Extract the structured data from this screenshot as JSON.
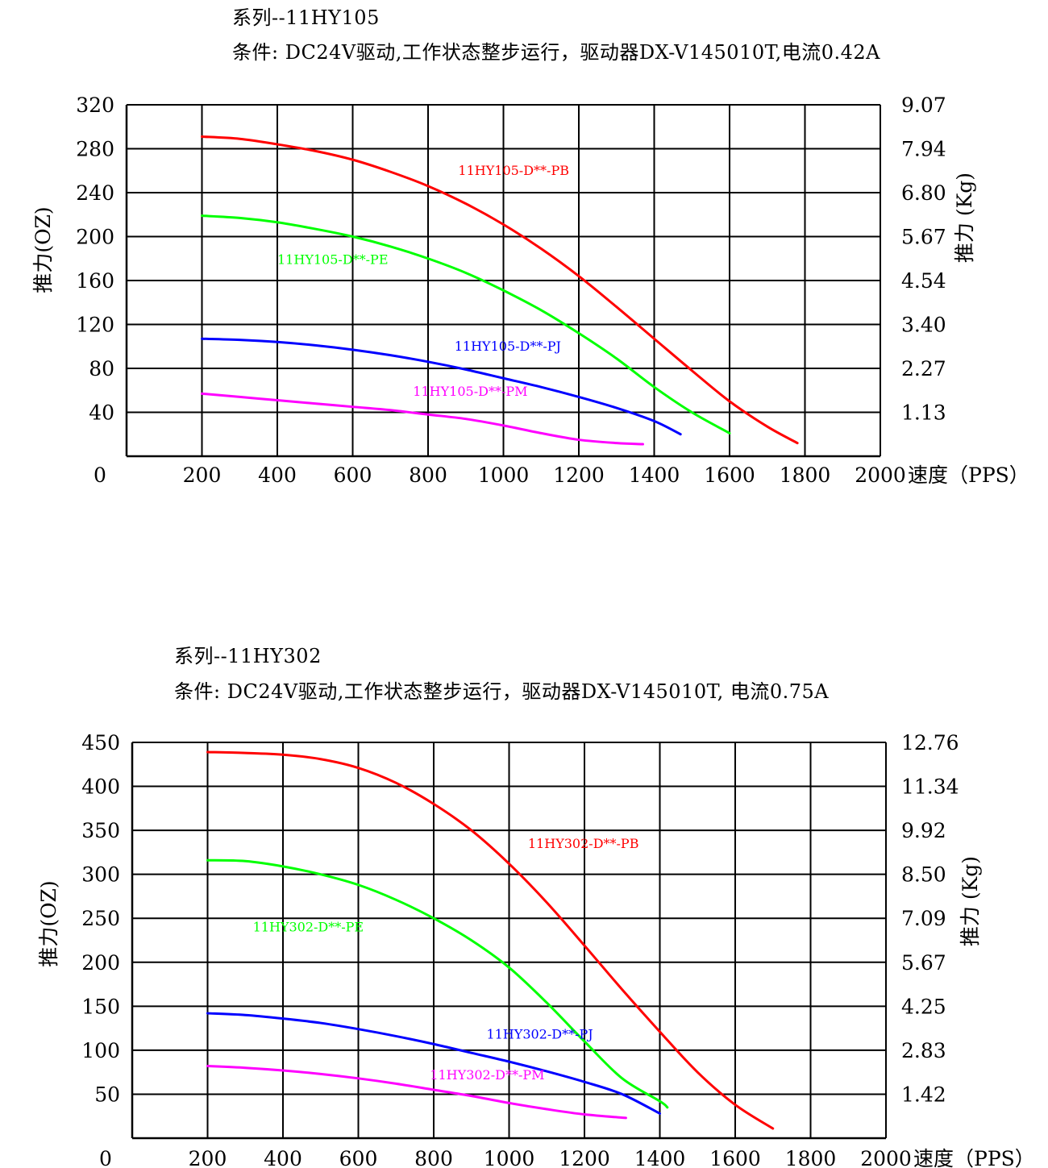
{
  "charts_page": {
    "chart1": {
      "series_line": "系列--11HY105",
      "conditions": "条件: DC24V驱动,工作状态整步运行，驱动器DX-V145010T,电流0.42A"
    },
    "chart2": {
      "series_line": "系列--11HY302",
      "conditions": "条件: DC24V驱动,工作状态整步运行，驱动器DX-V145010T, 电流0.75A"
    }
  },
  "chart_data": [
    {
      "type": "line",
      "title": "系列--11HY105",
      "subtitle": "条件: DC24V驱动,工作状态整步运行，驱动器DX-V145010T,电流0.42A",
      "xlabel": "速度（PPS）",
      "ylabel": "推力(OZ)",
      "y2label": "推力 (Kg)",
      "xlim": [
        0,
        2000
      ],
      "ylim": [
        0,
        320
      ],
      "x_ticks": [
        "200",
        "400",
        "600",
        "800",
        "1000",
        "1200",
        "1400",
        "1600",
        "1800",
        "2000"
      ],
      "x_tick_values": [
        200,
        400,
        600,
        800,
        1000,
        1200,
        1400,
        1600,
        1800,
        2000
      ],
      "y_ticks": [
        "0",
        "40",
        "80",
        "120",
        "160",
        "200",
        "240",
        "280",
        "320"
      ],
      "y_tick_values": [
        0,
        40,
        80,
        120,
        160,
        200,
        240,
        280,
        320
      ],
      "y2_ticks": [
        "1.13",
        "2.27",
        "3.40",
        "4.54",
        "5.67",
        "6.80",
        "7.94",
        "9.07"
      ],
      "y2_tick_values": [
        40,
        80,
        120,
        160,
        200,
        240,
        280,
        320
      ],
      "grid": true,
      "series": [
        {
          "name": "11HY105-D**-PB",
          "color": "#ff0000",
          "x": [
            200,
            300,
            400,
            500,
            600,
            700,
            800,
            900,
            1000,
            1100,
            1200,
            1300,
            1400,
            1500,
            1600,
            1700,
            1780
          ],
          "y": [
            291,
            289,
            284,
            278,
            270,
            259,
            246,
            230,
            211,
            189,
            164,
            136,
            107,
            78,
            50,
            27,
            12
          ],
          "label_at": [
            880,
            256
          ]
        },
        {
          "name": "11HY105-D**-PE",
          "color": "#00ff00",
          "x": [
            200,
            300,
            400,
            500,
            600,
            700,
            800,
            900,
            1000,
            1100,
            1200,
            1300,
            1400,
            1500,
            1600
          ],
          "y": [
            219,
            217,
            213,
            207,
            200,
            191,
            180,
            167,
            151,
            133,
            112,
            89,
            63,
            40,
            21
          ],
          "label_at": [
            400,
            175
          ]
        },
        {
          "name": "11HY105-D**-PJ",
          "color": "#0000ff",
          "x": [
            200,
            300,
            400,
            500,
            600,
            700,
            800,
            900,
            1000,
            1100,
            1200,
            1300,
            1400,
            1470
          ],
          "y": [
            107,
            106,
            104,
            101,
            97,
            92,
            86,
            79,
            71,
            63,
            54,
            44,
            32,
            20
          ],
          "label_at": [
            870,
            96
          ]
        },
        {
          "name": "11HY105-D**-PM",
          "color": "#ff00ff",
          "x": [
            200,
            300,
            400,
            500,
            600,
            700,
            800,
            900,
            1000,
            1100,
            1200,
            1300,
            1370
          ],
          "y": [
            57,
            54,
            51,
            48,
            45,
            42,
            38,
            34,
            28,
            21,
            15,
            12,
            11
          ],
          "label_at": [
            760,
            55
          ]
        }
      ]
    },
    {
      "type": "line",
      "title": "系列--11HY302",
      "subtitle": "条件: DC24V驱动,工作状态整步运行，驱动器DX-V145010T, 电流0.75A",
      "xlabel": "速度（PPS）",
      "ylabel": "推力(OZ)",
      "y2label": "推力 (Kg)",
      "xlim": [
        0,
        2000
      ],
      "ylim": [
        0,
        450
      ],
      "x_ticks": [
        "200",
        "400",
        "600",
        "800",
        "1000",
        "1200",
        "1400",
        "1600",
        "1800",
        "2000"
      ],
      "x_tick_values": [
        200,
        400,
        600,
        800,
        1000,
        1200,
        1400,
        1600,
        1800,
        2000
      ],
      "y_ticks": [
        "0",
        "50",
        "100",
        "150",
        "200",
        "250",
        "300",
        "350",
        "400",
        "450"
      ],
      "y_tick_values": [
        0,
        50,
        100,
        150,
        200,
        250,
        300,
        350,
        400,
        450
      ],
      "y2_ticks": [
        "1.42",
        "2.83",
        "4.25",
        "5.67",
        "7.09",
        "8.50",
        "9.92",
        "11.34",
        "12.76"
      ],
      "y2_tick_values": [
        50,
        100,
        150,
        200,
        250,
        300,
        350,
        400,
        450
      ],
      "grid": true,
      "series": [
        {
          "name": "11HY302-D**-PB",
          "color": "#ff0000",
          "x": [
            200,
            300,
            400,
            500,
            600,
            700,
            800,
            900,
            1000,
            1100,
            1200,
            1300,
            1400,
            1500,
            1600,
            1700
          ],
          "y": [
            439,
            438,
            436,
            431,
            421,
            404,
            380,
            350,
            312,
            268,
            219,
            169,
            121,
            75,
            38,
            11
          ],
          "label_at": [
            1050,
            330
          ]
        },
        {
          "name": "11HY302-D**-PE",
          "color": "#00ff00",
          "x": [
            200,
            300,
            400,
            500,
            600,
            700,
            800,
            900,
            1000,
            1100,
            1200,
            1300,
            1400,
            1420
          ],
          "y": [
            316,
            315,
            309,
            300,
            288,
            271,
            250,
            225,
            194,
            154,
            110,
            68,
            42,
            35
          ],
          "label_at": [
            320,
            235
          ]
        },
        {
          "name": "11HY302-D**-PJ",
          "color": "#0000ff",
          "x": [
            200,
            300,
            400,
            500,
            600,
            700,
            800,
            900,
            1000,
            1100,
            1200,
            1300,
            1400
          ],
          "y": [
            142,
            140,
            136,
            131,
            124,
            116,
            107,
            97,
            87,
            76,
            64,
            50,
            28
          ],
          "label_at": [
            940,
            113
          ]
        },
        {
          "name": "11HY302-D**-PM",
          "color": "#ff00ff",
          "x": [
            200,
            300,
            400,
            500,
            600,
            700,
            800,
            900,
            1000,
            1100,
            1200,
            1310
          ],
          "y": [
            82,
            80,
            77,
            73,
            68,
            62,
            55,
            48,
            40,
            33,
            27,
            23
          ],
          "label_at": [
            790,
            67
          ]
        }
      ]
    }
  ]
}
